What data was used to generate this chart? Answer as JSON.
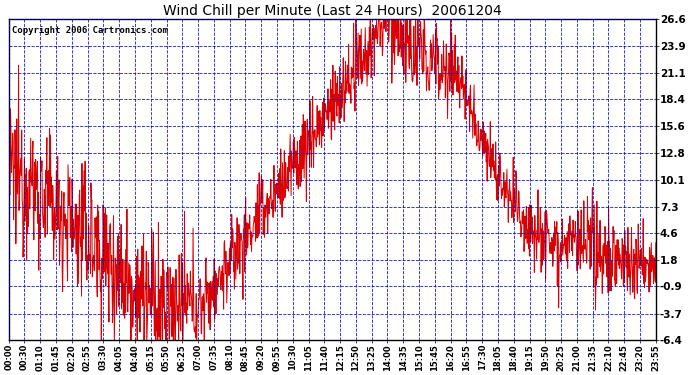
{
  "title": "Wind Chill per Minute (Last 24 Hours)  20061204",
  "copyright": "Copyright 2006 Cartronics.com",
  "yticks": [
    26.6,
    23.9,
    21.1,
    18.4,
    15.6,
    12.8,
    10.1,
    7.3,
    4.6,
    1.8,
    -0.9,
    -3.7,
    -6.4
  ],
  "ymin": -6.4,
  "ymax": 26.6,
  "background_color": "#ffffff",
  "plot_bg_color": "#ffffff",
  "line_color": "#dd0000",
  "grid_color": "#0000cc",
  "title_color": "#000000",
  "copyright_color": "#000000",
  "xtick_labels": [
    "00:00",
    "00:30",
    "01:10",
    "01:45",
    "02:20",
    "02:55",
    "03:30",
    "04:05",
    "04:40",
    "05:15",
    "05:50",
    "06:25",
    "07:00",
    "07:35",
    "08:10",
    "08:45",
    "09:20",
    "09:55",
    "10:30",
    "11:05",
    "11:40",
    "12:15",
    "12:50",
    "13:25",
    "14:00",
    "14:35",
    "15:10",
    "15:45",
    "16:20",
    "16:55",
    "17:30",
    "18:05",
    "18:40",
    "19:15",
    "19:50",
    "20:25",
    "21:00",
    "21:35",
    "22:10",
    "22:45",
    "23:20",
    "23:55"
  ],
  "seed": 12345,
  "figwidth": 6.9,
  "figheight": 3.75,
  "dpi": 100
}
